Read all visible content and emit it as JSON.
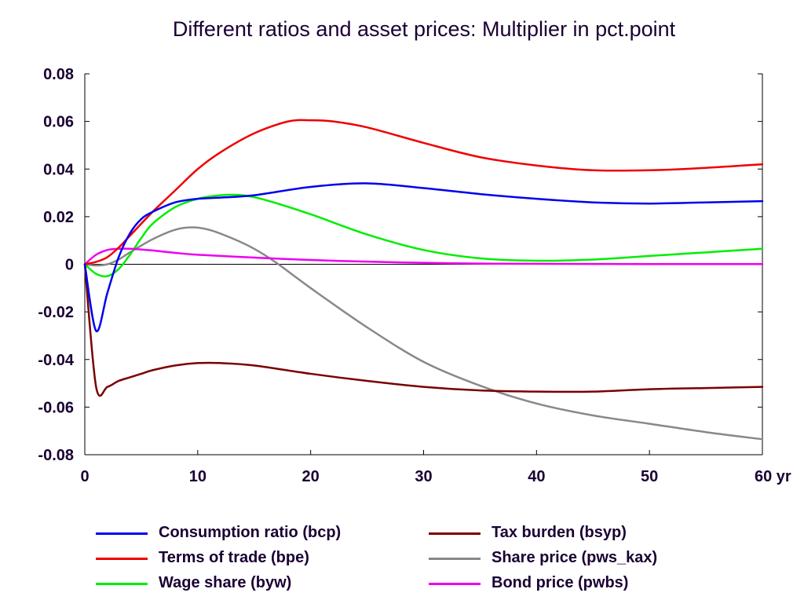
{
  "chart_data": {
    "type": "line",
    "title": "Different ratios and asset prices: Multiplier in pct.point",
    "xlabel": "",
    "ylabel": "",
    "x_unit": "yr",
    "xlim": [
      0,
      60
    ],
    "ylim": [
      -0.08,
      0.08
    ],
    "x_ticks": [
      0,
      10,
      20,
      30,
      40,
      50,
      60
    ],
    "x_tick_labels": [
      "0",
      "10",
      "20",
      "30",
      "40",
      "50",
      "60 yr"
    ],
    "y_ticks": [
      -0.08,
      -0.06,
      -0.04,
      -0.02,
      0,
      0.02,
      0.04,
      0.06,
      0.08
    ],
    "y_tick_labels": [
      "-0.08",
      "-0.06",
      "-0.04",
      "-0.02",
      "0",
      "0.02",
      "0.04",
      "0.06",
      "0.08"
    ],
    "grid": false,
    "zero_line": true,
    "legend_position": "bottom",
    "series": [
      {
        "name": "Consumption ratio (bcp)",
        "color": "#0000ee",
        "x": [
          0,
          1,
          2,
          3,
          4,
          5,
          6,
          8,
          10,
          12,
          15,
          20,
          25,
          30,
          35,
          40,
          45,
          50,
          55,
          60
        ],
        "y": [
          0,
          -0.028,
          -0.012,
          0.003,
          0.013,
          0.019,
          0.022,
          0.026,
          0.0275,
          0.028,
          0.029,
          0.0325,
          0.034,
          0.032,
          0.0295,
          0.0275,
          0.026,
          0.0255,
          0.026,
          0.0265
        ]
      },
      {
        "name": "Terms of trade (bpe)",
        "color": "#ee0000",
        "x": [
          0,
          1,
          2,
          3,
          4,
          6,
          8,
          10,
          12,
          15,
          18,
          20,
          22,
          25,
          30,
          35,
          40,
          45,
          50,
          55,
          60
        ],
        "y": [
          0,
          0.001,
          0.003,
          0.007,
          0.012,
          0.022,
          0.031,
          0.04,
          0.047,
          0.055,
          0.06,
          0.0605,
          0.06,
          0.0575,
          0.051,
          0.045,
          0.0415,
          0.0395,
          0.0395,
          0.0405,
          0.042
        ]
      },
      {
        "name": "Wage share (byw)",
        "color": "#00ee00",
        "x": [
          0,
          1,
          2,
          3,
          4,
          5,
          6,
          8,
          10,
          12,
          14,
          16,
          20,
          25,
          30,
          35,
          40,
          45,
          50,
          55,
          60
        ],
        "y": [
          0,
          -0.004,
          -0.005,
          -0.002,
          0.004,
          0.011,
          0.017,
          0.024,
          0.0275,
          0.029,
          0.029,
          0.027,
          0.021,
          0.0125,
          0.006,
          0.0025,
          0.0015,
          0.002,
          0.0035,
          0.005,
          0.0065
        ]
      },
      {
        "name": "Tax burden (bsyp)",
        "color": "#7a0000",
        "x": [
          0,
          1,
          2,
          3,
          4,
          5,
          6,
          8,
          10,
          12,
          15,
          20,
          25,
          30,
          35,
          40,
          45,
          50,
          55,
          60
        ],
        "y": [
          0,
          -0.0515,
          -0.0515,
          -0.049,
          -0.0475,
          -0.046,
          -0.0445,
          -0.0425,
          -0.0415,
          -0.0415,
          -0.0425,
          -0.046,
          -0.049,
          -0.0515,
          -0.053,
          -0.0535,
          -0.0535,
          -0.0525,
          -0.052,
          -0.0515
        ]
      },
      {
        "name": "Share price (pws_kax)",
        "color": "#888888",
        "x": [
          0,
          1,
          2,
          3,
          4,
          6,
          8,
          9.5,
          11,
          13,
          15,
          17,
          20,
          25,
          30,
          35,
          40,
          45,
          50,
          55,
          60
        ],
        "y": [
          0,
          -0.0005,
          0.0,
          0.002,
          0.005,
          0.0105,
          0.0145,
          0.0155,
          0.0145,
          0.011,
          0.0065,
          0.0005,
          -0.01,
          -0.0265,
          -0.041,
          -0.051,
          -0.0585,
          -0.0635,
          -0.067,
          -0.0705,
          -0.0735
        ]
      },
      {
        "name": "Bond price (pwbs)",
        "color": "#ee00ee",
        "x": [
          0,
          1,
          2,
          3,
          4,
          5,
          6,
          8,
          10,
          15,
          20,
          25,
          30,
          35,
          40,
          50,
          60
        ],
        "y": [
          0,
          0.004,
          0.006,
          0.0065,
          0.0065,
          0.0062,
          0.0058,
          0.0048,
          0.004,
          0.0028,
          0.0018,
          0.0011,
          0.0006,
          0.0003,
          0.0002,
          0.0001,
          0.0001
        ]
      }
    ]
  }
}
